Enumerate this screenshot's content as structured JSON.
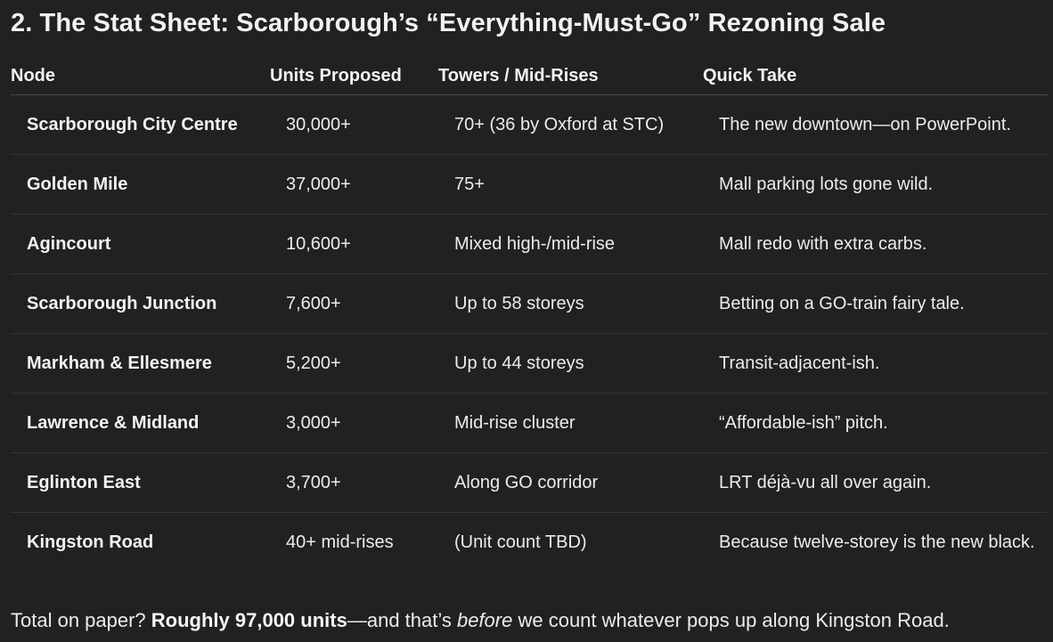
{
  "heading": "2. The Stat Sheet: Scarborough’s “Everything-Must-Go” Rezoning Sale",
  "table": {
    "headers": [
      "Node",
      "Units Proposed",
      "Towers / Mid-Rises",
      "Quick Take"
    ],
    "rows": [
      [
        "Scarborough City Centre",
        "30,000+",
        "70+ (36 by Oxford at STC)",
        "The new downtown—on PowerPoint."
      ],
      [
        "Golden Mile",
        "37,000+",
        "75+",
        "Mall parking lots gone wild."
      ],
      [
        "Agincourt",
        "10,600+",
        "Mixed high-/mid-rise",
        "Mall redo with extra carbs."
      ],
      [
        "Scarborough Junction",
        "7,600+",
        "Up to 58 storeys",
        "Betting on a GO-train fairy tale."
      ],
      [
        "Markham & Ellesmere",
        "5,200+",
        "Up to 44 storeys",
        "Transit-adjacent-ish."
      ],
      [
        "Lawrence & Midland",
        "3,000+",
        "Mid-rise cluster",
        "“Affordable-ish” pitch."
      ],
      [
        "Eglinton East",
        "3,700+",
        "Along GO corridor",
        "LRT déjà-vu all over again."
      ],
      [
        "Kingston Road",
        "40+ mid-rises",
        "(Unit count TBD)",
        "Because twelve-storey is the new black."
      ]
    ]
  },
  "summary": {
    "prefix": "Total on paper? ",
    "bold": "Roughly 97,000 units",
    "middle": "—and that’s ",
    "italic": "before",
    "suffix": " we count whatever pops up along Kingston Road."
  }
}
